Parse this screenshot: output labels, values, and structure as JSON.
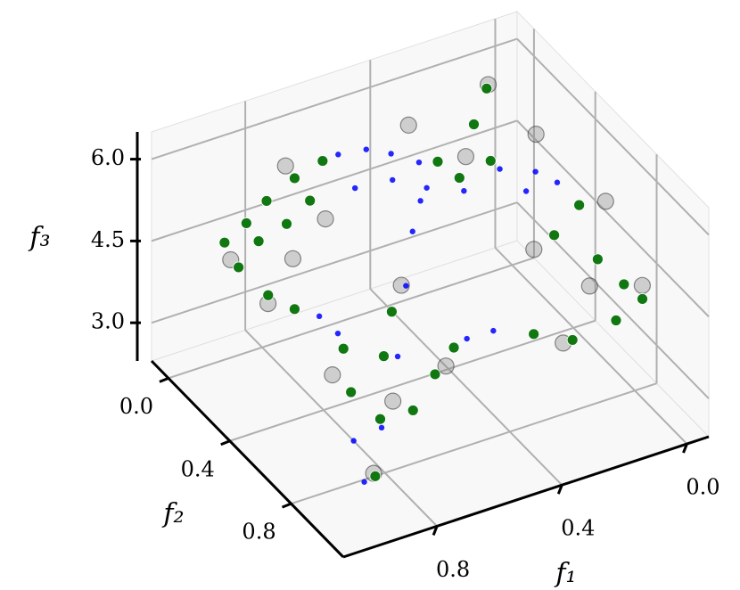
{
  "chart_data": {
    "type": "scatter3d",
    "xlabel": "f₁",
    "ylabel": "f₂",
    "zlabel": "f₃",
    "xlim": [
      -0.07,
      1.1
    ],
    "ylim": [
      -0.11,
      1.14
    ],
    "zlim": [
      2.3,
      6.5
    ],
    "xticks": [
      {
        "value": 0,
        "label": "0.0"
      },
      0.4,
      0.8
    ],
    "yticks": [
      {
        "value": 0,
        "label": "0.0"
      },
      0.4,
      0.8
    ],
    "zticks": [
      {
        "value": 3,
        "label": "3.0"
      },
      4.5,
      {
        "value": 6,
        "label": "6.0"
      }
    ],
    "grid": true,
    "series": [
      {
        "color": "#808080",
        "x": [
          0.94,
          0.74,
          0.73,
          0.85,
          0.8,
          0.41,
          0.16,
          0.11,
          0.32,
          0.22,
          0.01,
          0.03,
          0.19,
          0.12,
          0.85,
          0.6,
          0.58,
          0.88,
          0.74
        ],
        "y": [
          0.08,
          0.03,
          0.27,
          0.14,
          0.2,
          0.16,
          0.17,
          0.38,
          0.35,
          0.59,
          0.63,
          0.91,
          0.72,
          0.75,
          0.56,
          0.5,
          0.75,
          0.89,
          0.73
        ],
        "z": [
          4.4,
          5.6,
          5.3,
          3.6,
          4.5,
          6.1,
          6.4,
          6.0,
          5.9,
          4.7,
          5.3,
          4.6,
          3.3,
          4.3,
          3.5,
          4.5,
          3.7,
          2.7,
          3.3
        ]
      },
      {
        "color": "#0000ff",
        "x": [
          0.89,
          0.91,
          0.83,
          0.7,
          0.59,
          0.51,
          0.47,
          0.45,
          0.65,
          0.57,
          0.52,
          0.46,
          0.28,
          0.2,
          0.16,
          0.65,
          0.54,
          0.38,
          0.23,
          0.73,
          0.7,
          0.4,
          0.33
        ],
        "y": [
          0.78,
          0.89,
          0.84,
          0.68,
          0.51,
          0.39,
          0.36,
          0.36,
          0.19,
          0.21,
          0.27,
          0.33,
          0.49,
          0.56,
          0.62,
          0.3,
          0.32,
          0.46,
          0.56,
          0.23,
          0.29,
          0.52,
          0.55
        ],
        "z": [
          3.0,
          2.6,
          3.3,
          3.9,
          4.5,
          5.0,
          5.4,
          5.6,
          6.1,
          6.1,
          6.1,
          6.0,
          6.0,
          6.0,
          5.9,
          5.8,
          5.8,
          5.7,
          5.7,
          3.4,
          3.2,
          3.2,
          3.3
        ]
      },
      {
        "color": "#117711",
        "x": [
          0.94,
          0.88,
          0.83,
          0.76,
          0.69,
          0.9,
          0.83,
          0.76,
          0.88,
          0.81,
          0.75,
          0.16,
          0.25,
          0.36,
          0.4,
          0.27,
          0.15,
          0.07,
          0.05,
          0.02,
          0.01,
          0.06,
          0.16,
          0.24,
          0.87,
          0.8,
          0.72,
          0.66,
          0.7,
          0.6,
          0.53,
          0.8,
          0.82
        ],
        "y": [
          0.04,
          0.06,
          0.09,
          0.13,
          0.17,
          0.05,
          0.1,
          0.13,
          0.14,
          0.18,
          0.21,
          0.16,
          0.26,
          0.39,
          0.33,
          0.41,
          0.58,
          0.58,
          0.66,
          0.77,
          0.87,
          0.8,
          0.72,
          0.63,
          0.88,
          0.77,
          0.63,
          0.56,
          0.78,
          0.72,
          0.7,
          0.53,
          0.62
        ],
        "z": [
          4.6,
          4.9,
          5.3,
          5.7,
          6.0,
          4.1,
          3.6,
          3.3,
          4.8,
          5.1,
          5.5,
          6.3,
          6.1,
          5.7,
          5.9,
          5.9,
          4.8,
          5.2,
          4.4,
          4.2,
          4.2,
          3.7,
          3.3,
          3.3,
          2.6,
          3.2,
          3.8,
          4.3,
          3.2,
          3.5,
          3.8,
          3.8,
          3.3
        ]
      }
    ]
  }
}
